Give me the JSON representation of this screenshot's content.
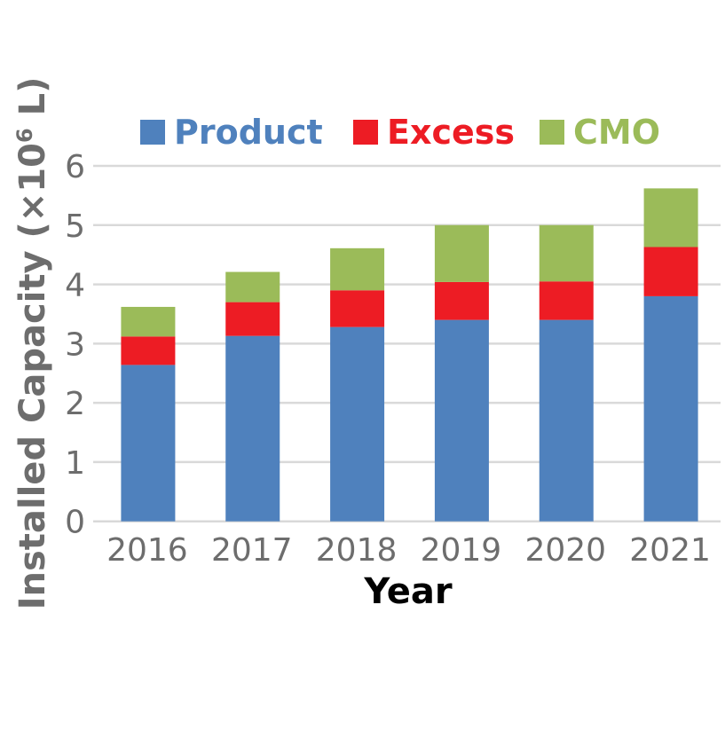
{
  "chart_data": {
    "type": "bar",
    "stacked": true,
    "title": "",
    "xlabel": "Year",
    "ylabel": "Installed Capacity (×10⁶ L)",
    "ylabel_parts": {
      "main": "Installed Capacity (×10",
      "sup": "6",
      "end": " L)"
    },
    "ylim": [
      0,
      6
    ],
    "yticks": [
      "0",
      "1",
      "2",
      "3",
      "4",
      "5",
      "6"
    ],
    "grid": true,
    "legend_position": "top",
    "categories": [
      "2016",
      "2017",
      "2018",
      "2019",
      "2020",
      "2021"
    ],
    "series": [
      {
        "name": "Product",
        "color": "#4f81bd",
        "values": [
          2.64,
          3.13,
          3.28,
          3.4,
          3.4,
          3.8
        ]
      },
      {
        "name": "Excess",
        "color": "#ed1c24",
        "values": [
          0.48,
          0.57,
          0.62,
          0.64,
          0.65,
          0.83
        ]
      },
      {
        "name": "CMO",
        "color": "#9bbb59",
        "values": [
          0.5,
          0.51,
          0.71,
          0.96,
          0.95,
          0.99
        ]
      }
    ]
  }
}
